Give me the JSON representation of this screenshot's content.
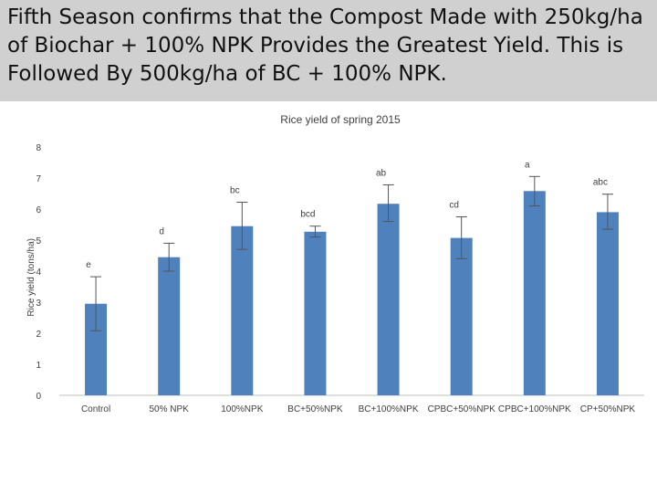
{
  "slide": {
    "title": "Fifth Season confirms that the Compost  Made with 250kg/ha of Biochar + 100% NPK Provides the Greatest Yield.  This is Followed By 500kg/ha of BC + 100% NPK."
  },
  "colors": {
    "header_bg": "#d0d0d0",
    "bar": "#4f81bd",
    "error_bar": "#555555",
    "axis": "#bfbfbf",
    "text": "#404040"
  },
  "chart_data": {
    "type": "bar",
    "title": "Rice yield of spring 2015",
    "xlabel": "",
    "ylabel": "Rice yield (tons/ha)",
    "ylim": [
      0,
      8
    ],
    "yticks": [
      0,
      1,
      2,
      3,
      4,
      5,
      6,
      7,
      8
    ],
    "grid": false,
    "categories": [
      "Control",
      "50% NPK",
      "100%NPK",
      "BC+50%NPK",
      "BC+100%NPK",
      "CPBC+50%NPK",
      "CPBC+100%NPK",
      "CP+50%NPK"
    ],
    "values": [
      2.95,
      4.45,
      5.45,
      5.27,
      6.17,
      5.07,
      6.58,
      5.9
    ],
    "error_low": [
      2.08,
      4.0,
      4.7,
      5.1,
      5.6,
      4.4,
      6.1,
      5.35
    ],
    "error_high": [
      3.82,
      4.9,
      6.22,
      5.45,
      6.78,
      5.75,
      7.05,
      6.48
    ],
    "significance_labels": [
      "e",
      "d",
      "bc",
      "bcd",
      "ab",
      "cd",
      "a",
      "abc"
    ]
  }
}
